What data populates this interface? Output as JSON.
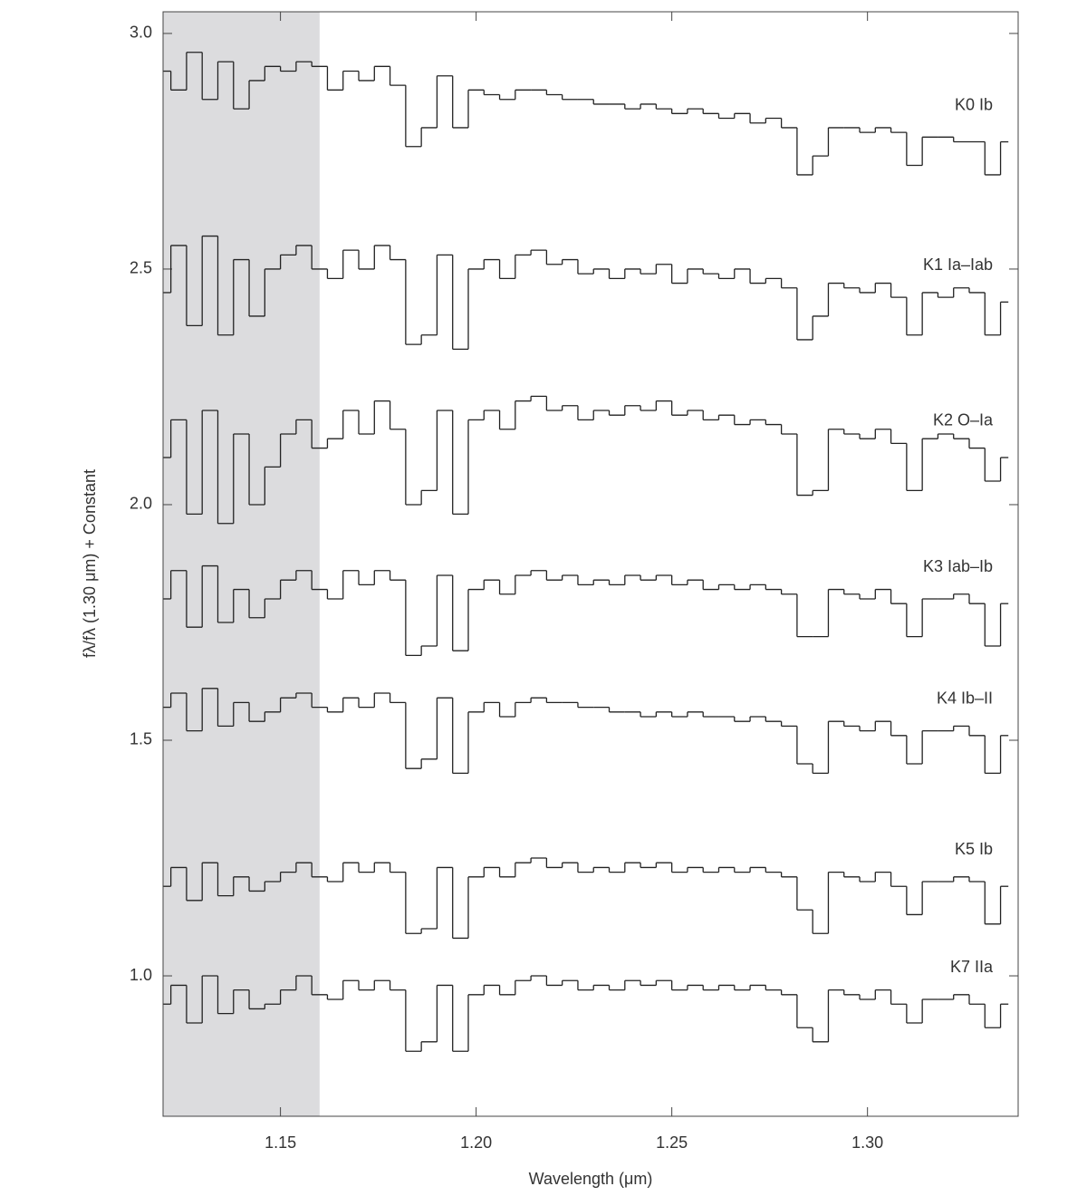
{
  "chart_data": {
    "type": "line",
    "drawstyle": "steps-mid",
    "xlabel": "Wavelength (μm)",
    "ylabel": "fλ/fλ (1.30 μm) + Constant",
    "xlim": [
      1.12,
      1.3385
    ],
    "ylim": [
      0.702,
      3.046
    ],
    "xticks": [
      {
        "value": 1.15,
        "label": "1.15"
      },
      {
        "value": 1.2,
        "label": "1.20"
      },
      {
        "value": 1.25,
        "label": "1.25"
      },
      {
        "value": 1.3,
        "label": "1.30"
      }
    ],
    "yticks": [
      {
        "value": 1,
        "label": "1.0"
      },
      1.5,
      {
        "value": 2,
        "label": "2.0"
      },
      2.5,
      {
        "value": 3,
        "label": "3.0"
      }
    ],
    "shade": {
      "xmin": 1.12,
      "xmax": 1.16,
      "color": "#dcdcde"
    },
    "x": [
      1.12,
      1.124,
      1.128,
      1.132,
      1.136,
      1.14,
      1.144,
      1.148,
      1.152,
      1.156,
      1.16,
      1.164,
      1.168,
      1.172,
      1.176,
      1.18,
      1.184,
      1.188,
      1.192,
      1.196,
      1.2,
      1.204,
      1.208,
      1.212,
      1.216,
      1.22,
      1.224,
      1.228,
      1.232,
      1.236,
      1.24,
      1.244,
      1.248,
      1.252,
      1.256,
      1.26,
      1.264,
      1.268,
      1.272,
      1.276,
      1.28,
      1.284,
      1.288,
      1.292,
      1.296,
      1.3,
      1.304,
      1.308,
      1.312,
      1.316,
      1.32,
      1.324,
      1.328,
      1.332,
      1.336
    ],
    "series": [
      {
        "name": "K0 Ib",
        "color": "#222222",
        "values": [
          2.92,
          2.88,
          2.96,
          2.86,
          2.94,
          2.84,
          2.9,
          2.93,
          2.92,
          2.94,
          2.93,
          2.88,
          2.92,
          2.9,
          2.93,
          2.89,
          2.76,
          2.8,
          2.91,
          2.8,
          2.88,
          2.87,
          2.86,
          2.88,
          2.88,
          2.87,
          2.86,
          2.86,
          2.85,
          2.85,
          2.84,
          2.85,
          2.84,
          2.83,
          2.84,
          2.83,
          2.82,
          2.83,
          2.81,
          2.82,
          2.8,
          2.7,
          2.74,
          2.8,
          2.8,
          2.79,
          2.8,
          2.79,
          2.72,
          2.78,
          2.78,
          2.77,
          2.77,
          2.7,
          2.77
        ]
      },
      {
        "name": "K1 Ia–Iab",
        "color": "#222222",
        "values": [
          2.45,
          2.55,
          2.38,
          2.57,
          2.36,
          2.52,
          2.4,
          2.5,
          2.53,
          2.55,
          2.5,
          2.48,
          2.54,
          2.5,
          2.55,
          2.52,
          2.34,
          2.36,
          2.53,
          2.33,
          2.5,
          2.52,
          2.48,
          2.53,
          2.54,
          2.51,
          2.52,
          2.49,
          2.5,
          2.48,
          2.5,
          2.49,
          2.51,
          2.47,
          2.5,
          2.49,
          2.48,
          2.5,
          2.47,
          2.48,
          2.46,
          2.35,
          2.4,
          2.47,
          2.46,
          2.45,
          2.47,
          2.44,
          2.36,
          2.45,
          2.44,
          2.46,
          2.45,
          2.36,
          2.43
        ]
      },
      {
        "name": "K2 O–Ia",
        "color": "#222222",
        "values": [
          2.1,
          2.18,
          1.98,
          2.2,
          1.96,
          2.15,
          2.0,
          2.08,
          2.15,
          2.18,
          2.12,
          2.14,
          2.2,
          2.15,
          2.22,
          2.16,
          2.0,
          2.03,
          2.2,
          1.98,
          2.18,
          2.2,
          2.16,
          2.22,
          2.23,
          2.2,
          2.21,
          2.18,
          2.2,
          2.19,
          2.21,
          2.2,
          2.22,
          2.19,
          2.2,
          2.18,
          2.19,
          2.17,
          2.18,
          2.17,
          2.15,
          2.02,
          2.03,
          2.16,
          2.15,
          2.14,
          2.16,
          2.13,
          2.03,
          2.14,
          2.15,
          2.14,
          2.12,
          2.05,
          2.1
        ]
      },
      {
        "name": "K3 Iab–Ib",
        "color": "#222222",
        "values": [
          1.8,
          1.86,
          1.74,
          1.87,
          1.75,
          1.82,
          1.76,
          1.8,
          1.84,
          1.86,
          1.82,
          1.8,
          1.86,
          1.83,
          1.86,
          1.84,
          1.68,
          1.7,
          1.85,
          1.69,
          1.82,
          1.84,
          1.81,
          1.85,
          1.86,
          1.84,
          1.85,
          1.83,
          1.84,
          1.83,
          1.85,
          1.84,
          1.85,
          1.83,
          1.84,
          1.82,
          1.83,
          1.82,
          1.83,
          1.82,
          1.81,
          1.72,
          1.72,
          1.82,
          1.81,
          1.8,
          1.82,
          1.79,
          1.72,
          1.8,
          1.8,
          1.81,
          1.79,
          1.7,
          1.79
        ]
      },
      {
        "name": "K4 Ib–II",
        "color": "#222222",
        "values": [
          1.57,
          1.6,
          1.52,
          1.61,
          1.53,
          1.58,
          1.54,
          1.56,
          1.59,
          1.6,
          1.57,
          1.56,
          1.59,
          1.57,
          1.6,
          1.58,
          1.44,
          1.46,
          1.59,
          1.43,
          1.56,
          1.58,
          1.55,
          1.58,
          1.59,
          1.58,
          1.58,
          1.57,
          1.57,
          1.56,
          1.56,
          1.55,
          1.56,
          1.55,
          1.56,
          1.55,
          1.55,
          1.54,
          1.55,
          1.54,
          1.53,
          1.45,
          1.43,
          1.54,
          1.53,
          1.52,
          1.54,
          1.51,
          1.45,
          1.52,
          1.52,
          1.53,
          1.51,
          1.43,
          1.51
        ]
      },
      {
        "name": "K5 Ib",
        "color": "#222222",
        "values": [
          1.19,
          1.23,
          1.16,
          1.24,
          1.17,
          1.21,
          1.18,
          1.2,
          1.22,
          1.24,
          1.21,
          1.2,
          1.24,
          1.22,
          1.24,
          1.22,
          1.09,
          1.1,
          1.23,
          1.08,
          1.21,
          1.23,
          1.21,
          1.24,
          1.25,
          1.23,
          1.24,
          1.22,
          1.23,
          1.22,
          1.24,
          1.23,
          1.24,
          1.22,
          1.23,
          1.22,
          1.23,
          1.22,
          1.23,
          1.22,
          1.21,
          1.14,
          1.09,
          1.22,
          1.21,
          1.2,
          1.22,
          1.19,
          1.13,
          1.2,
          1.2,
          1.21,
          1.2,
          1.11,
          1.19
        ]
      },
      {
        "name": "K7 IIa",
        "color": "#222222",
        "values": [
          0.94,
          0.98,
          0.9,
          1.0,
          0.92,
          0.97,
          0.93,
          0.94,
          0.97,
          1.0,
          0.96,
          0.95,
          0.99,
          0.97,
          0.99,
          0.97,
          0.84,
          0.86,
          0.98,
          0.84,
          0.96,
          0.98,
          0.96,
          0.99,
          1.0,
          0.98,
          0.99,
          0.97,
          0.98,
          0.97,
          0.99,
          0.98,
          0.99,
          0.97,
          0.98,
          0.97,
          0.98,
          0.97,
          0.98,
          0.97,
          0.96,
          0.89,
          0.86,
          0.97,
          0.96,
          0.95,
          0.97,
          0.94,
          0.9,
          0.95,
          0.95,
          0.96,
          0.94,
          0.89,
          0.94
        ]
      }
    ]
  }
}
